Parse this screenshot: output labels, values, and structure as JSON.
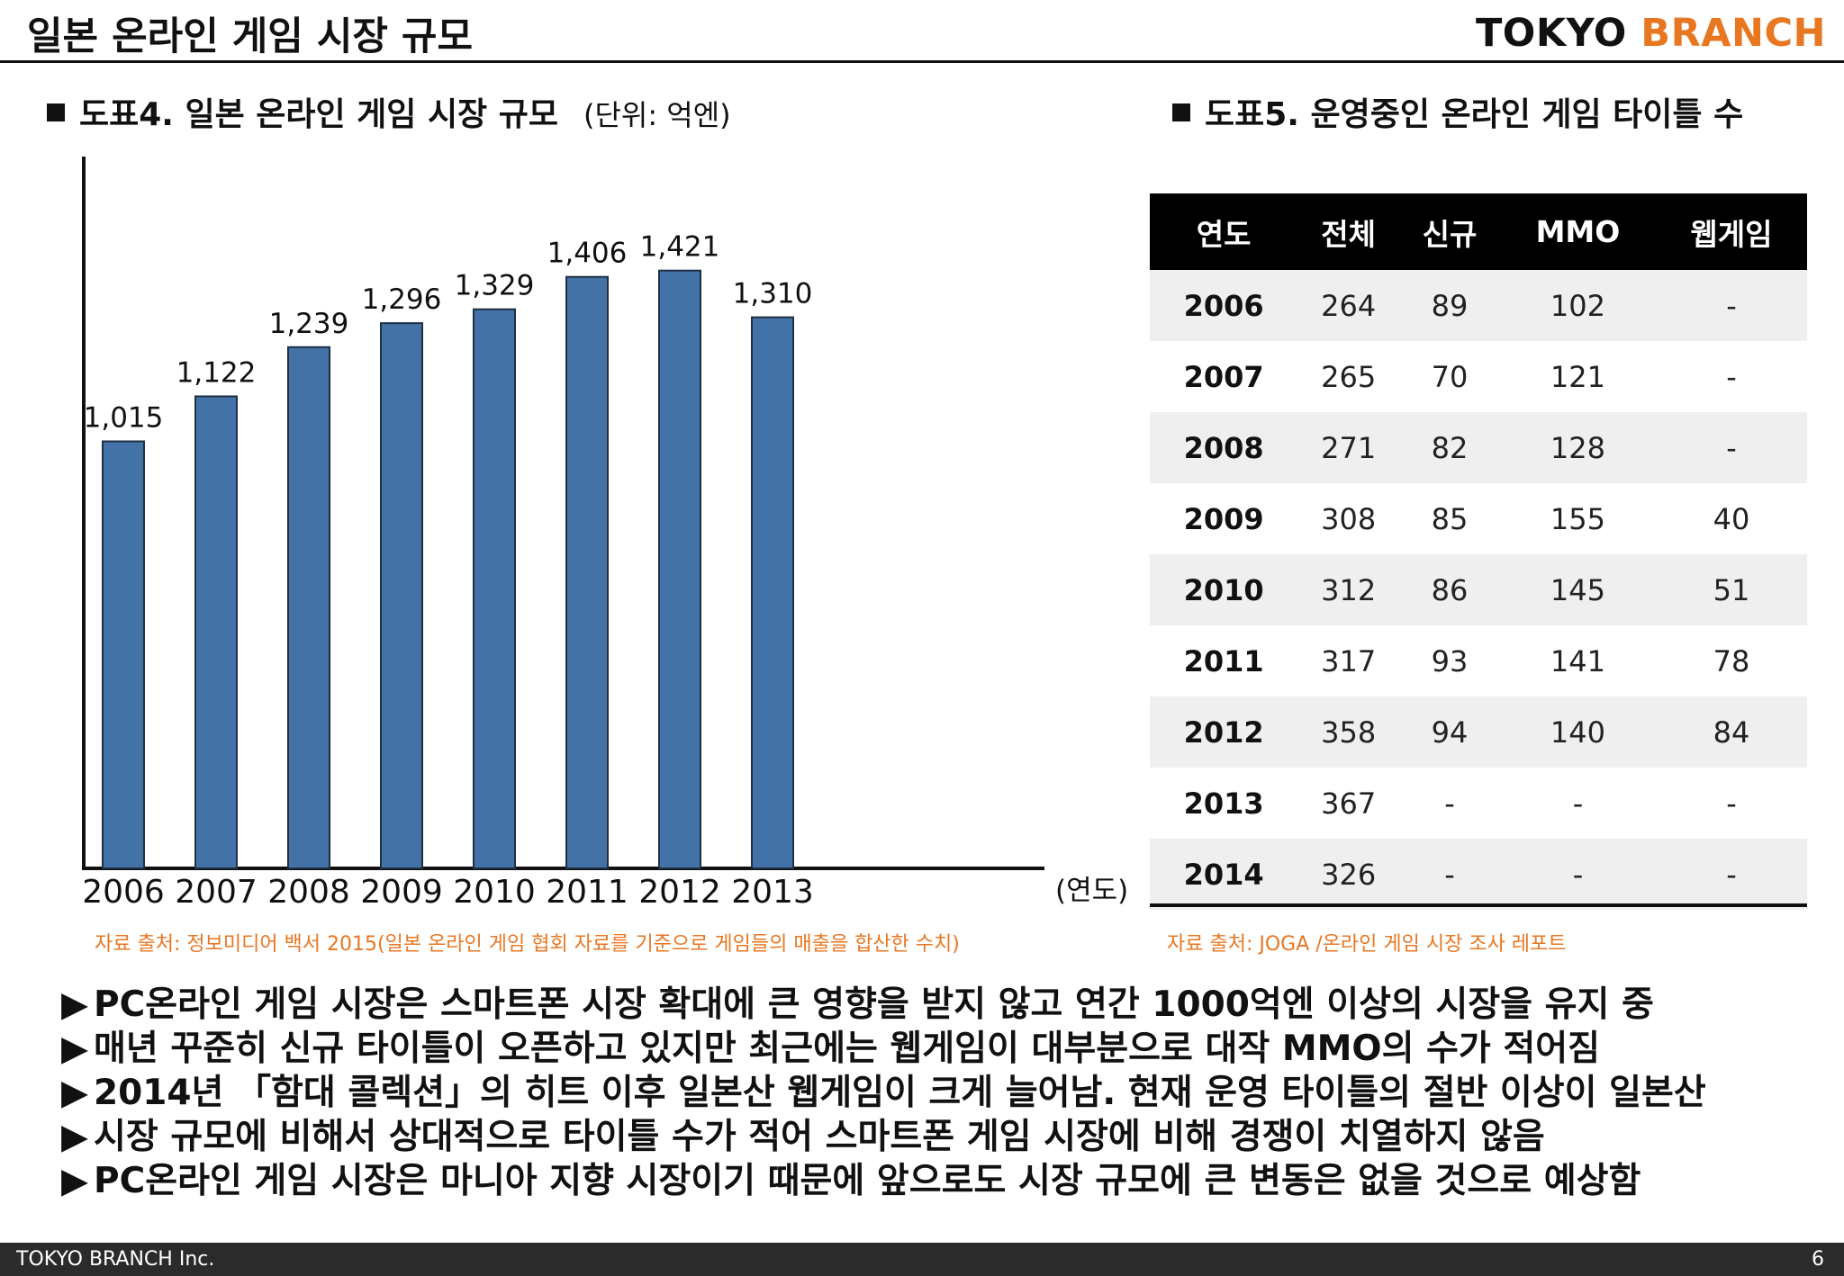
{
  "header": {
    "title": "일본 온라인 게임 시장 규모",
    "brand_part1": "TOKYO",
    "brand_part2": "BRANCH"
  },
  "chart_section": {
    "title": "도표4. 일본 온라인 게임 시장 규모",
    "unit": "(단위: 억엔)",
    "source": "자료 출처: 정보미디어 백서 2015(일본 온라인 게임 협회 자료를 기준으로 게임들의 매출을 합산한 수치)"
  },
  "chart_data": {
    "type": "bar",
    "categories": [
      "2006",
      "2007",
      "2008",
      "2009",
      "2010",
      "2011",
      "2012",
      "2013"
    ],
    "values": [
      1015,
      1122,
      1239,
      1296,
      1329,
      1406,
      1421,
      1310
    ],
    "value_labels": [
      "1,015",
      "1,122",
      "1,239",
      "1,296",
      "1,329",
      "1,406",
      "1,421",
      "1,310"
    ],
    "title": "도표4. 일본 온라인 게임 시장 규모",
    "xlabel": "(연도)",
    "ylabel": "",
    "ylim": [
      0,
      1600
    ],
    "bar_color": "#4372a6",
    "grid": false
  },
  "table_section": {
    "title": "도표5. 운영중인 온라인 게임 타이틀 수",
    "columns": [
      "연도",
      "전체",
      "신규",
      "MMO",
      "웹게임"
    ],
    "rows": [
      [
        "2006",
        "264",
        "89",
        "102",
        "-"
      ],
      [
        "2007",
        "265",
        "70",
        "121",
        "-"
      ],
      [
        "2008",
        "271",
        "82",
        "128",
        "-"
      ],
      [
        "2009",
        "308",
        "85",
        "155",
        "40"
      ],
      [
        "2010",
        "312",
        "86",
        "145",
        "51"
      ],
      [
        "2011",
        "317",
        "93",
        "141",
        "78"
      ],
      [
        "2012",
        "358",
        "94",
        "140",
        "84"
      ],
      [
        "2013",
        "367",
        "-",
        "-",
        "-"
      ],
      [
        "2014",
        "326",
        "-",
        "-",
        "-"
      ]
    ],
    "source": "자료 출처: JOGA /온라인 게임 시장 조사 레포트"
  },
  "bullets": [
    "PC온라인 게임 시장은 스마트폰 시장 확대에 큰 영향을 받지 않고 연간 1000억엔 이상의 시장을 유지 중",
    "매년 꾸준히 신규 타이틀이 오픈하고 있지만 최근에는 웹게임이 대부분으로 대작 MMO의 수가 적어짐",
    "2014년 「함대 콜렉션」의 히트 이후 일본산 웹게임이 크게 늘어남. 현재 운영 타이틀의 절반 이상이 일본산",
    "시장 규모에 비해서 상대적으로 타이틀 수가 적어 스마트폰 게임 시장에 비해 경쟁이 치열하지 않음",
    "PC온라인 게임 시장은 마니아 지향 시장이기 때문에 앞으로도 시장 규모에 큰 변동은 없을 것으로 예상함"
  ],
  "bullet_marker": "▶",
  "footer": {
    "company": "TOKYO BRANCH Inc.",
    "page_number": "6"
  },
  "colors": {
    "accent": "#e87722",
    "bar": "#4372a6",
    "table_header_bg": "#000000",
    "table_alt_row_bg": "#efefef",
    "footer_bg": "#2b2b2b"
  }
}
